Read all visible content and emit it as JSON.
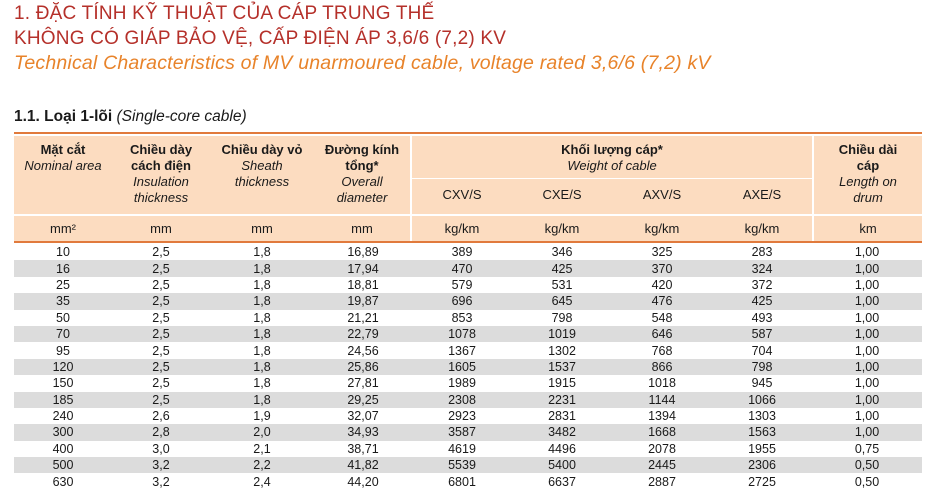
{
  "heading": {
    "line1": "1. ĐẶC TÍNH KỸ THUẬT CỦA CÁP TRUNG THẾ",
    "line2": "KHÔNG CÓ GIÁP BẢO VỆ, CẤP ĐIỆN ÁP 3,6/6 (7,2) KV",
    "line3": "Technical Characteristics of MV unarmoured cable, voltage rated 3,6/6 (7,2) kV"
  },
  "section": {
    "bold": "1.1. Loại 1-lõi",
    "italic": "(Single-core cable)"
  },
  "columns": {
    "area": {
      "vi": "Mặt cắt",
      "en": "Nominal area",
      "unit": "mm²"
    },
    "insulation": {
      "vi1": "Chiều dày",
      "vi2": "cách điện",
      "en1": "Insulation",
      "en2": "thickness",
      "unit": "mm"
    },
    "sheath": {
      "vi": "Chiều dày vỏ",
      "en1": "Sheath",
      "en2": "thickness",
      "unit": "mm"
    },
    "diameter": {
      "vi1": "Đường kính",
      "vi2": "tổng*",
      "en1": "Overall",
      "en2": "diameter",
      "unit": "mm"
    },
    "weight": {
      "vi": "Khối lượng cáp*",
      "en": "Weight of cable"
    },
    "cxv": {
      "label": "CXV/S",
      "unit": "kg/km"
    },
    "cxe": {
      "label": "CXE/S",
      "unit": "kg/km"
    },
    "axv": {
      "label": "AXV/S",
      "unit": "kg/km"
    },
    "axe": {
      "label": "AXE/S",
      "unit": "kg/km"
    },
    "length": {
      "vi1": "Chiều dài",
      "vi2": "cáp",
      "en1": "Length on",
      "en2": "drum",
      "unit": "km"
    }
  },
  "rows": [
    [
      "10",
      "2,5",
      "1,8",
      "16,89",
      "389",
      "346",
      "325",
      "283",
      "1,00"
    ],
    [
      "16",
      "2,5",
      "1,8",
      "17,94",
      "470",
      "425",
      "370",
      "324",
      "1,00"
    ],
    [
      "25",
      "2,5",
      "1,8",
      "18,81",
      "579",
      "531",
      "420",
      "372",
      "1,00"
    ],
    [
      "35",
      "2,5",
      "1,8",
      "19,87",
      "696",
      "645",
      "476",
      "425",
      "1,00"
    ],
    [
      "50",
      "2,5",
      "1,8",
      "21,21",
      "853",
      "798",
      "548",
      "493",
      "1,00"
    ],
    [
      "70",
      "2,5",
      "1,8",
      "22,79",
      "1078",
      "1019",
      "646",
      "587",
      "1,00"
    ],
    [
      "95",
      "2,5",
      "1,8",
      "24,56",
      "1367",
      "1302",
      "768",
      "704",
      "1,00"
    ],
    [
      "120",
      "2,5",
      "1,8",
      "25,86",
      "1605",
      "1537",
      "866",
      "798",
      "1,00"
    ],
    [
      "150",
      "2,5",
      "1,8",
      "27,81",
      "1989",
      "1915",
      "1018",
      "945",
      "1,00"
    ],
    [
      "185",
      "2,5",
      "1,8",
      "29,25",
      "2308",
      "2231",
      "1144",
      "1066",
      "1,00"
    ],
    [
      "240",
      "2,6",
      "1,9",
      "32,07",
      "2923",
      "2831",
      "1394",
      "1303",
      "1,00"
    ],
    [
      "300",
      "2,8",
      "2,0",
      "34,93",
      "3587",
      "3482",
      "1668",
      "1563",
      "1,00"
    ],
    [
      "400",
      "3,0",
      "2,1",
      "38,71",
      "4619",
      "4496",
      "2078",
      "1955",
      "0,75"
    ],
    [
      "500",
      "3,2",
      "2,2",
      "41,82",
      "5539",
      "5400",
      "2445",
      "2306",
      "0,50"
    ],
    [
      "630",
      "3,2",
      "2,4",
      "44,20",
      "6801",
      "6637",
      "2887",
      "2725",
      "0,50"
    ]
  ]
}
